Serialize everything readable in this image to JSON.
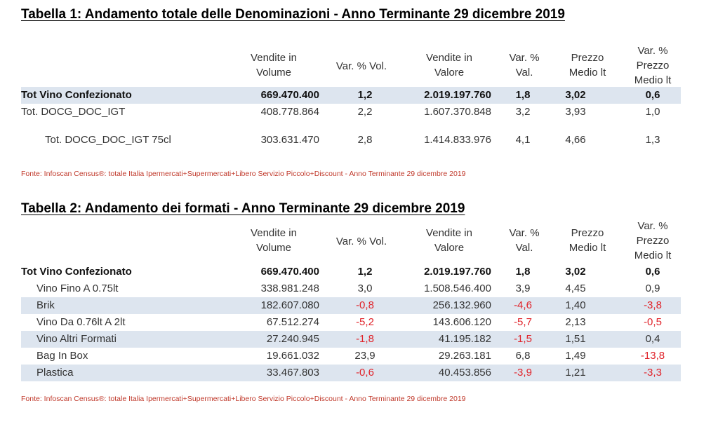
{
  "table1": {
    "title": "Tabella 1:  Andamento totale delle Denominazioni -  Anno Terminante 29 dicembre 2019",
    "headers": [
      "Vendite in Volume",
      "Var. % Vol.",
      "Vendite in Valore",
      "Var. % Val.",
      "Prezzo Medio lt",
      "Var. % Prezzo Medio lt"
    ],
    "rows": [
      {
        "label": "Tot Vino Confezionato",
        "bold": true,
        "shaded": true,
        "cells": [
          "669.470.400",
          "1,2",
          "2.019.197.760",
          "1,8",
          "3,02",
          "0,6"
        ],
        "neg": [
          false,
          false,
          false,
          false,
          false,
          false
        ]
      },
      {
        "label": "Tot. DOCG_DOC_IGT",
        "bold": false,
        "shaded": false,
        "cells": [
          "408.778.864",
          "2,2",
          "1.607.370.848",
          "3,2",
          "3,93",
          "1,0"
        ],
        "neg": [
          false,
          false,
          false,
          false,
          false,
          false
        ]
      },
      {
        "label": "Tot. DOCG_DOC_IGT 75cl",
        "bold": false,
        "shaded": false,
        "cells": [
          "303.631.470",
          "2,8",
          "1.414.833.976",
          "4,1",
          "4,66",
          "1,3"
        ],
        "neg": [
          false,
          false,
          false,
          false,
          false,
          false
        ]
      }
    ],
    "source": "Fonte: Infoscan Census®: totale Italia Ipermercati+Supermercati+Libero Servizio Piccolo+Discount - Anno Terminante 29 dicembre 2019"
  },
  "table2": {
    "title": "Tabella 2:  Andamento dei formati -  Anno Terminante 29 dicembre 2019",
    "headers": [
      "Vendite in Volume",
      "Var. % Vol.",
      "Vendite in Valore",
      "Var. % Val.",
      "Prezzo Medio lt",
      "Var. % Prezzo Medio lt"
    ],
    "rows": [
      {
        "label": "Tot Vino Confezionato",
        "bold": true,
        "shaded": false,
        "cells": [
          "669.470.400",
          "1,2",
          "2.019.197.760",
          "1,8",
          "3,02",
          "0,6"
        ],
        "neg": [
          false,
          false,
          false,
          false,
          false,
          false
        ]
      },
      {
        "label": "Vino Fino A 0.75lt",
        "bold": false,
        "shaded": false,
        "cells": [
          "338.981.248",
          "3,0",
          "1.508.546.400",
          "3,9",
          "4,45",
          "0,9"
        ],
        "neg": [
          false,
          false,
          false,
          false,
          false,
          false
        ]
      },
      {
        "label": "Brik",
        "bold": false,
        "shaded": true,
        "cells": [
          "182.607.080",
          "-0,8",
          "256.132.960",
          "-4,6",
          "1,40",
          "-3,8"
        ],
        "neg": [
          false,
          true,
          false,
          true,
          false,
          true
        ]
      },
      {
        "label": "Vino Da 0.76lt A 2lt",
        "bold": false,
        "shaded": false,
        "cells": [
          "67.512.274",
          "-5,2",
          "143.606.120",
          "-5,7",
          "2,13",
          "-0,5"
        ],
        "neg": [
          false,
          true,
          false,
          true,
          false,
          true
        ]
      },
      {
        "label": "Vino Altri Formati",
        "bold": false,
        "shaded": true,
        "cells": [
          "27.240.945",
          "-1,8",
          "41.195.182",
          "-1,5",
          "1,51",
          "0,4"
        ],
        "neg": [
          false,
          true,
          false,
          true,
          false,
          false
        ]
      },
      {
        "label": "Bag In Box",
        "bold": false,
        "shaded": false,
        "cells": [
          "19.661.032",
          "23,9",
          "29.263.181",
          "6,8",
          "1,49",
          "-13,8"
        ],
        "neg": [
          false,
          false,
          false,
          false,
          false,
          true
        ]
      },
      {
        "label": "Plastica",
        "bold": false,
        "shaded": true,
        "cells": [
          "33.467.803",
          "-0,6",
          "40.453.856",
          "-3,9",
          "1,21",
          "-3,3"
        ],
        "neg": [
          false,
          true,
          false,
          true,
          false,
          true
        ]
      }
    ],
    "source": "Fonte: Infoscan Census®: totale Italia Ipermercati+Supermercati+Libero Servizio Piccolo+Discount - Anno Terminante 29 dicembre 2019"
  }
}
